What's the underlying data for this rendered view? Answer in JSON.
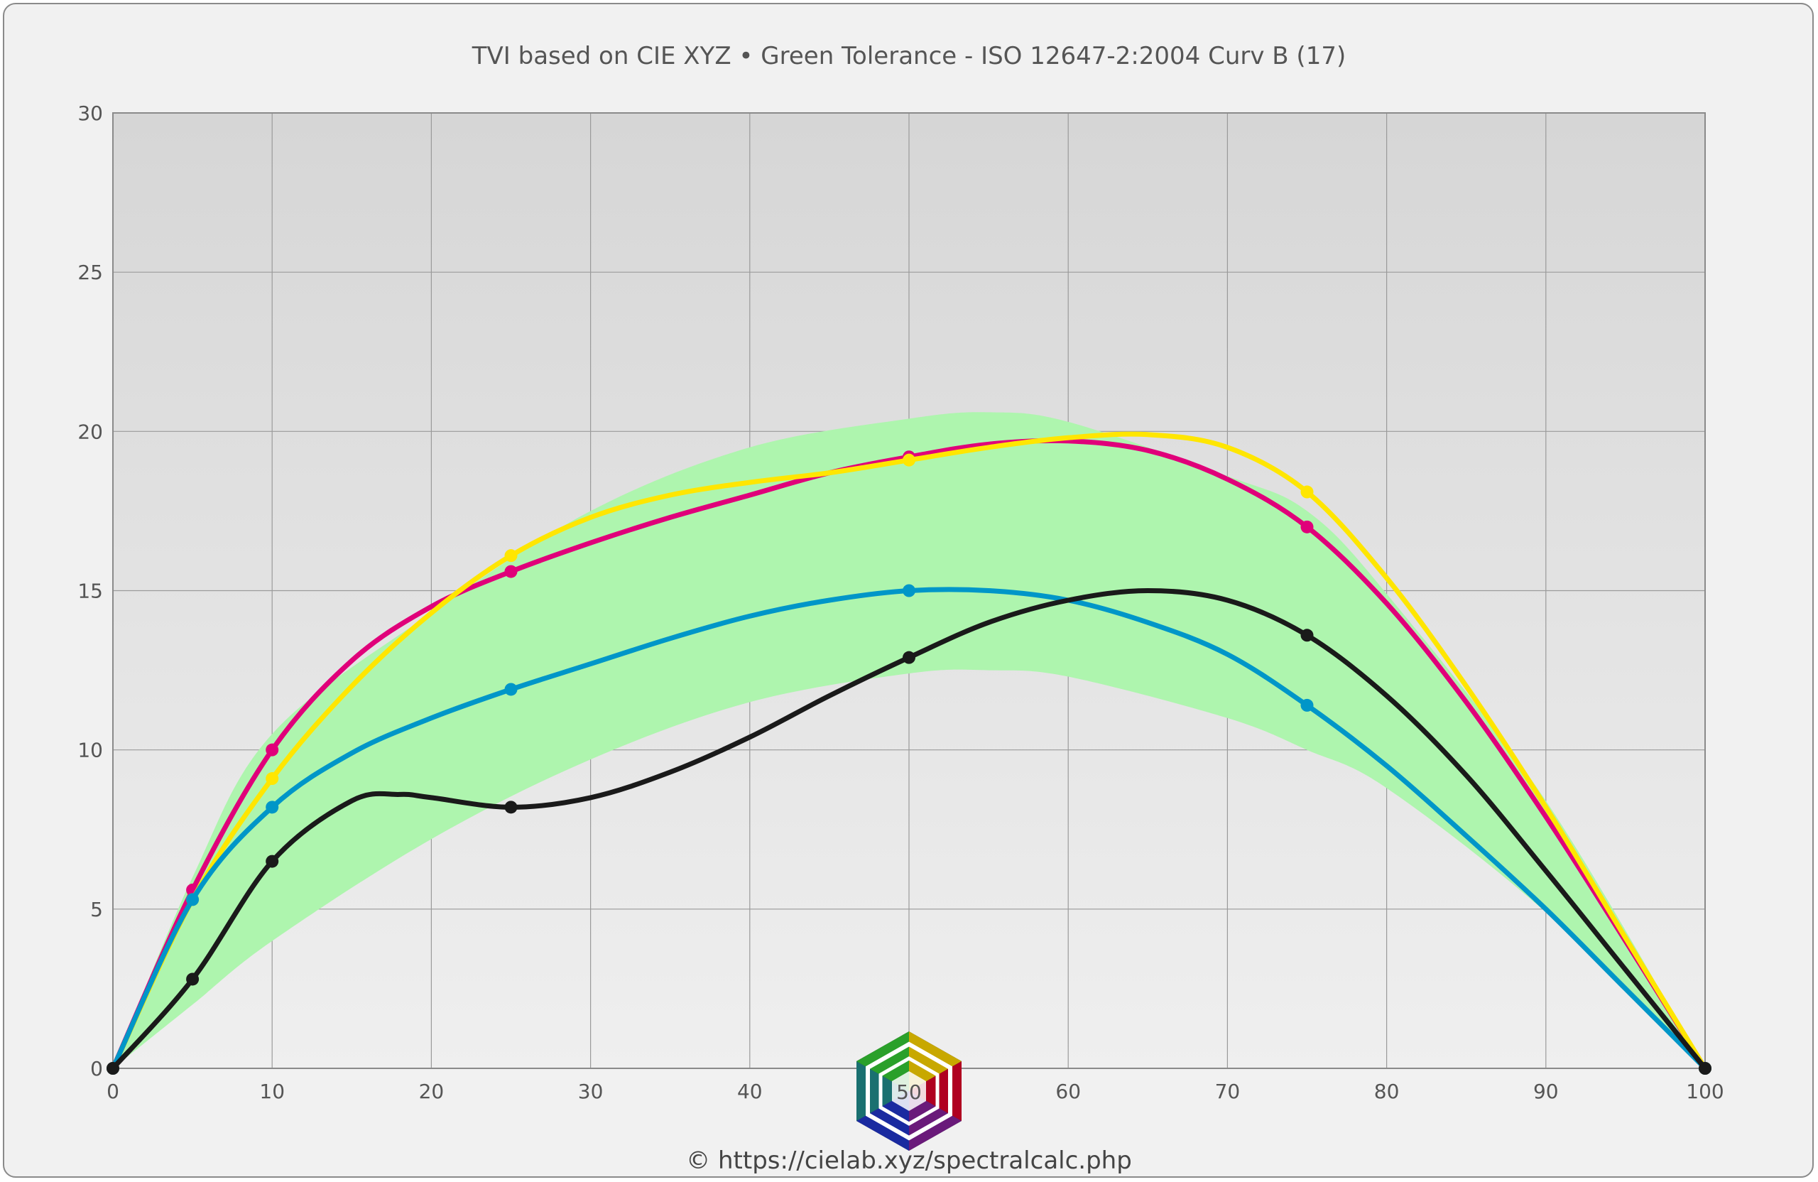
{
  "chart_data": {
    "type": "line",
    "title": "TVI based on CIE XYZ  •  Green Tolerance - ISO 12647-2:2004 Curv B (17)",
    "xlabel": "",
    "ylabel": "",
    "xlim": [
      0,
      100
    ],
    "ylim": [
      0,
      30
    ],
    "x_ticks": [
      "0",
      "10",
      "20",
      "30",
      "40",
      "50",
      "60",
      "70",
      "80",
      "90",
      "100"
    ],
    "y_ticks": [
      "0",
      "5",
      "10",
      "15",
      "20",
      "25",
      "30"
    ],
    "grid": true,
    "tolerance_band": {
      "color": "#aef5ae",
      "x": [
        0,
        5,
        10,
        20,
        30,
        40,
        50,
        55,
        60,
        70,
        75,
        80,
        90,
        100
      ],
      "upper": [
        0,
        6.0,
        10.5,
        14.3,
        17.5,
        19.5,
        20.4,
        20.6,
        20.3,
        18.6,
        17.5,
        14.9,
        8.4,
        0
      ],
      "lower": [
        0,
        2.0,
        4.0,
        7.2,
        9.7,
        11.5,
        12.4,
        12.5,
        12.3,
        11.0,
        10.0,
        8.8,
        4.9,
        0
      ]
    },
    "series": [
      {
        "color": "#e0007a",
        "x": [
          0,
          5,
          10,
          25,
          50,
          75,
          100
        ],
        "y": [
          0,
          5.6,
          10.0,
          15.6,
          19.2,
          17.0,
          0
        ],
        "curve_x": [
          0,
          5,
          10,
          15,
          20,
          25,
          30,
          35,
          40,
          45,
          50,
          55,
          60,
          65,
          70,
          75,
          80,
          85,
          90,
          95,
          100
        ],
        "curve_y": [
          0,
          5.6,
          10.0,
          12.8,
          14.5,
          15.6,
          16.5,
          17.3,
          18.0,
          18.7,
          19.2,
          19.6,
          19.7,
          19.4,
          18.5,
          17.0,
          14.6,
          11.5,
          7.9,
          4.0,
          0
        ]
      },
      {
        "color": "#ffe600",
        "x": [
          0,
          5,
          10,
          25,
          50,
          75,
          100
        ],
        "y": [
          0,
          5.3,
          9.1,
          16.1,
          19.1,
          18.1,
          0
        ],
        "curve_x": [
          0,
          5,
          10,
          15,
          20,
          25,
          30,
          35,
          40,
          45,
          50,
          55,
          60,
          65,
          70,
          75,
          80,
          85,
          90,
          95,
          100
        ],
        "curve_y": [
          0,
          5.3,
          9.1,
          12.0,
          14.3,
          16.1,
          17.3,
          18.0,
          18.4,
          18.7,
          19.1,
          19.5,
          19.8,
          19.9,
          19.5,
          18.1,
          15.4,
          12.0,
          8.2,
          4.1,
          0
        ]
      },
      {
        "color": "#0096c8",
        "x": [
          0,
          5,
          10,
          25,
          50,
          75,
          100
        ],
        "y": [
          0,
          5.3,
          8.2,
          11.9,
          15.0,
          11.4,
          0
        ],
        "curve_x": [
          0,
          5,
          10,
          15,
          20,
          25,
          30,
          35,
          40,
          45,
          50,
          55,
          60,
          65,
          70,
          75,
          80,
          85,
          90,
          95,
          100
        ],
        "curve_y": [
          0,
          5.3,
          8.2,
          9.9,
          11.0,
          11.9,
          12.7,
          13.5,
          14.2,
          14.7,
          15.0,
          15.0,
          14.7,
          14.0,
          13.0,
          11.4,
          9.5,
          7.3,
          5.0,
          2.5,
          0
        ]
      },
      {
        "color": "#1a1a1a",
        "x": [
          0,
          5,
          10,
          25,
          50,
          75,
          100
        ],
        "y": [
          0,
          2.8,
          6.5,
          8.2,
          12.9,
          13.6,
          0
        ],
        "curve_x": [
          0,
          5,
          10,
          15,
          18,
          20,
          25,
          30,
          35,
          40,
          45,
          50,
          55,
          60,
          65,
          70,
          75,
          80,
          85,
          90,
          95,
          100
        ],
        "curve_y": [
          0,
          2.8,
          6.5,
          8.4,
          8.6,
          8.5,
          8.2,
          8.5,
          9.3,
          10.4,
          11.7,
          12.9,
          14.0,
          14.7,
          15.0,
          14.7,
          13.6,
          11.7,
          9.2,
          6.2,
          3.1,
          0
        ]
      }
    ]
  },
  "footer": {
    "logo_value": "50",
    "credit": "© https://cielab.xyz/spectralcalc.php"
  },
  "colors": {
    "frame_background": "#f1f1f1",
    "plot_top": "#d6d6d6",
    "plot_bottom": "#efefef",
    "grid": "#9a9a9a"
  }
}
